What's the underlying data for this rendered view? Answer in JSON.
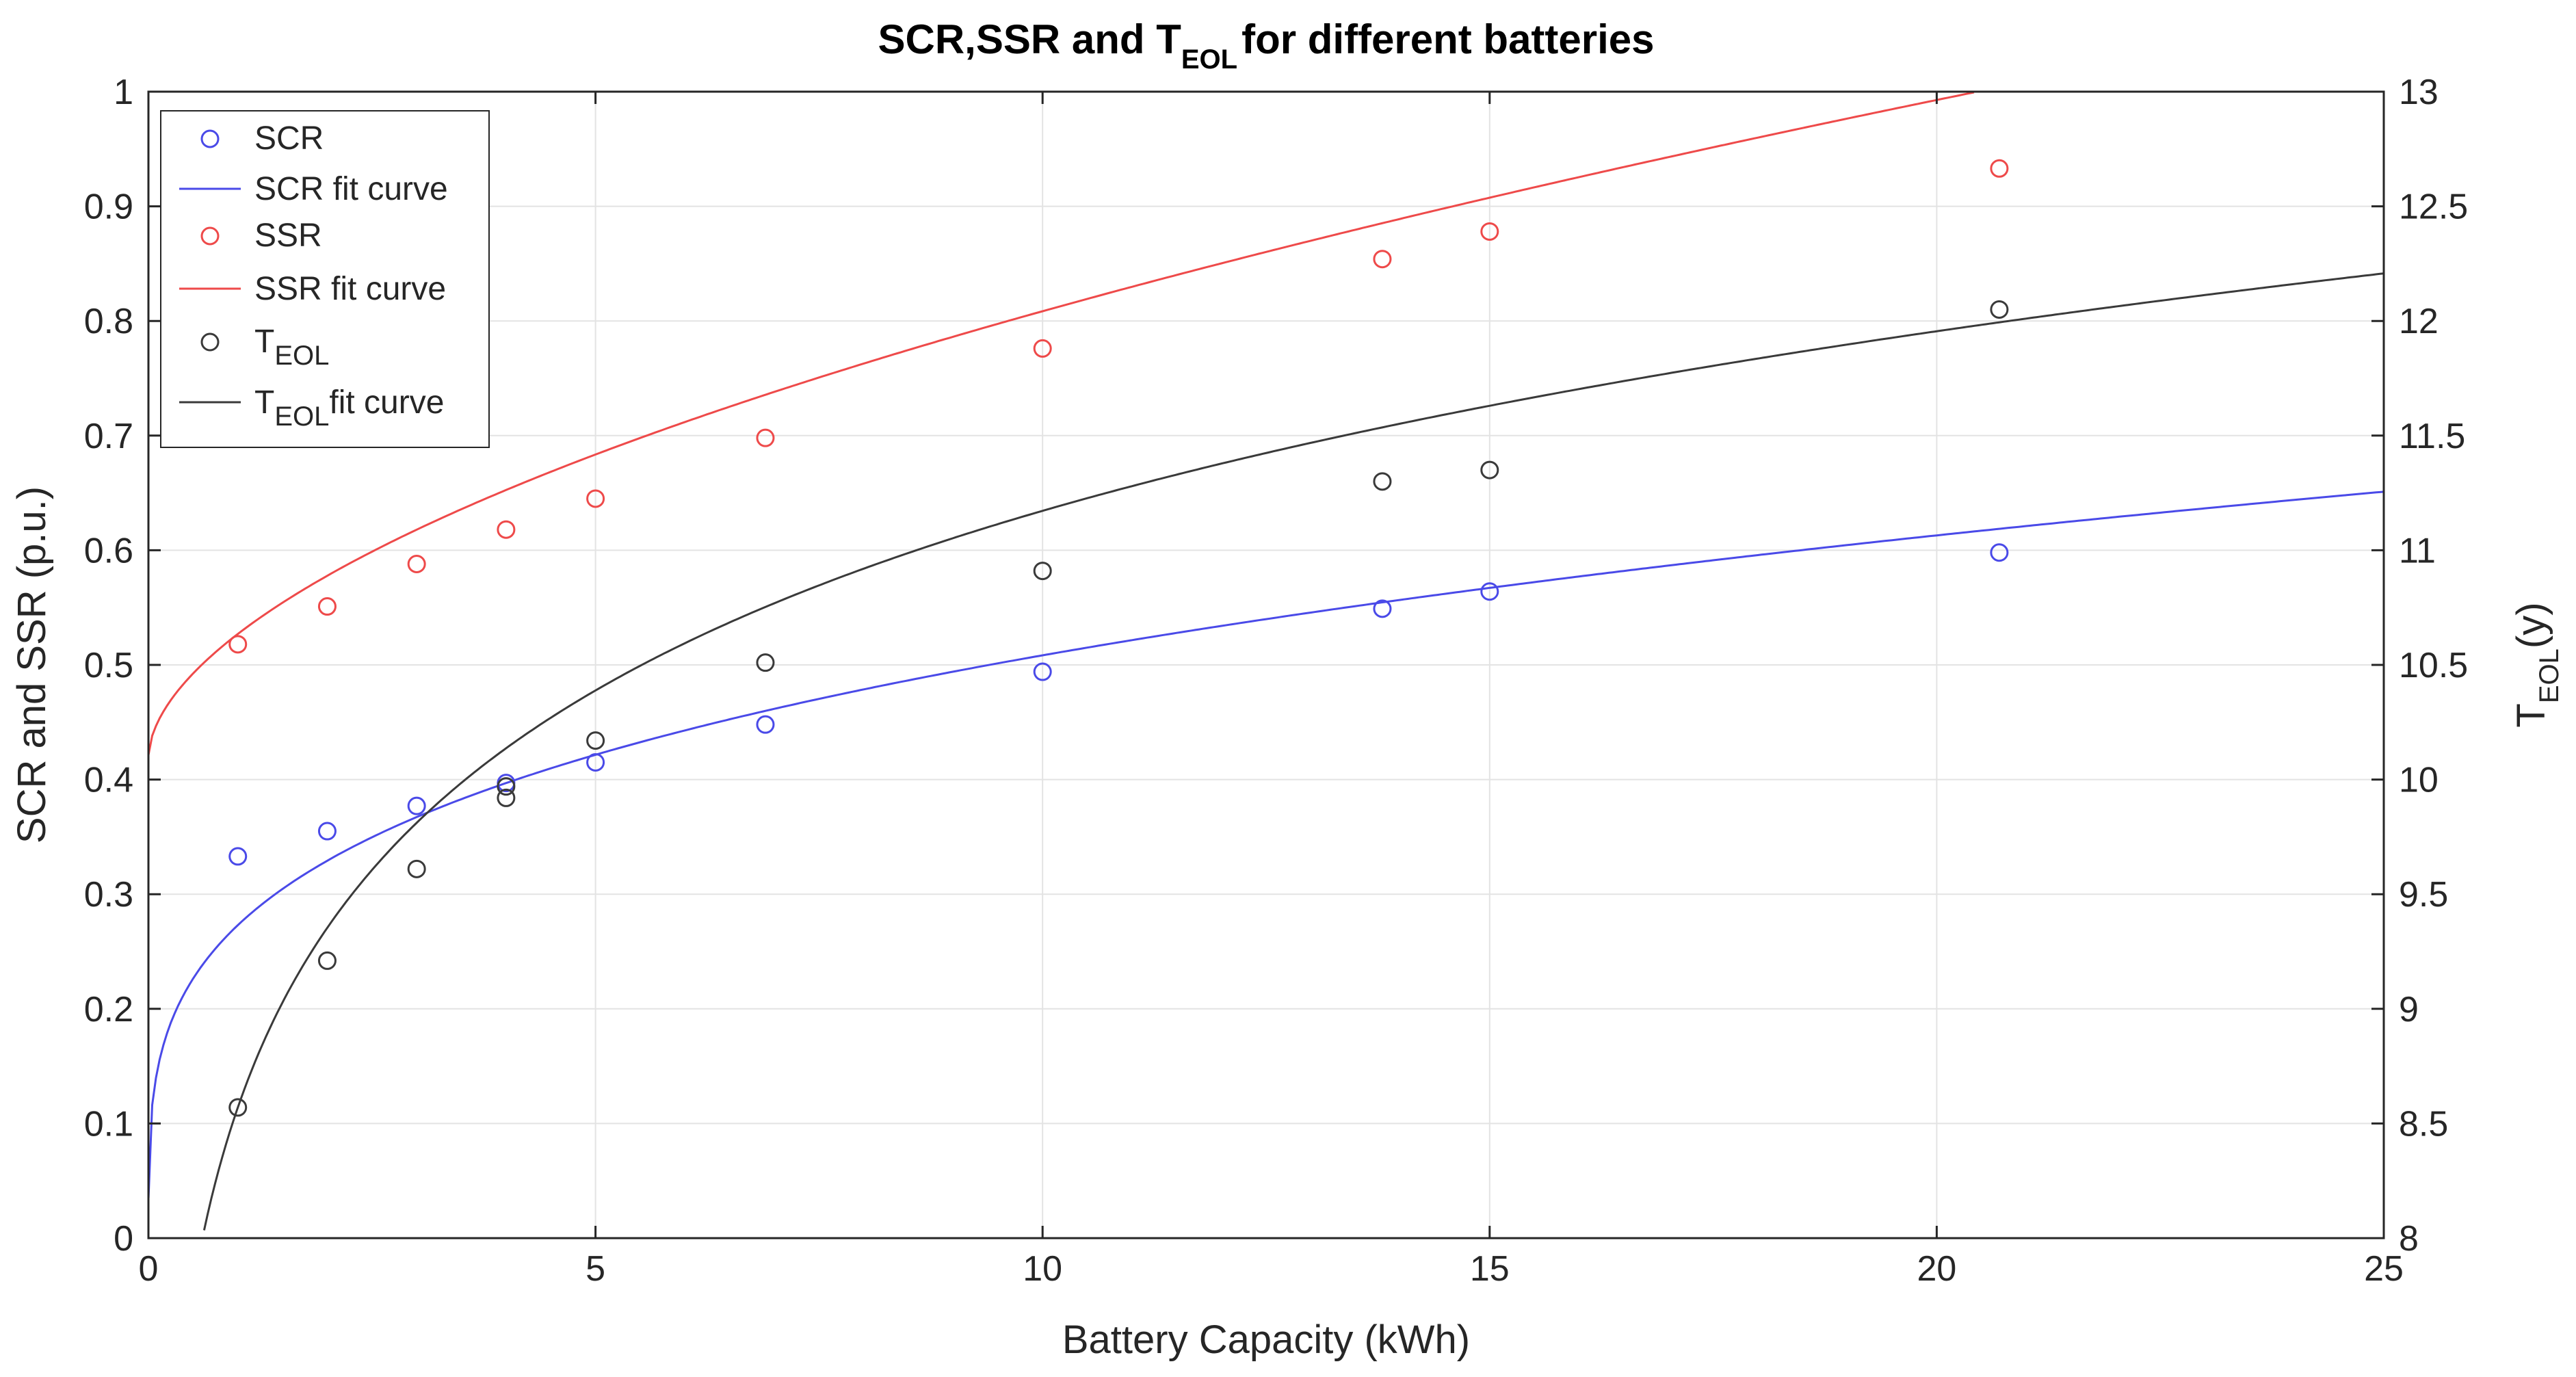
{
  "chart_data": {
    "type": "scatter",
    "title": {
      "main": "SCR,SSR and T",
      "sub": "EOL",
      "tail": "for different batteries"
    },
    "xlabel": "Battery Capacity (kWh)",
    "ylabel_left": "SCR and SSR (p.u.)",
    "ylabel_right": {
      "main": "T",
      "sub": "EOL",
      "tail": "(y)"
    },
    "xlim": [
      0,
      25
    ],
    "ylim_left": [
      0,
      1
    ],
    "ylim_right": [
      8,
      13
    ],
    "x_ticks": [
      "0",
      "5",
      "10",
      "15",
      "20",
      "25"
    ],
    "y_left_ticks": [
      "0",
      "0.1",
      "0.2",
      "0.3",
      "0.4",
      "0.5",
      "0.6",
      "0.7",
      "0.8",
      "0.9",
      "1"
    ],
    "y_right_ticks": [
      "8",
      "8.5",
      "9",
      "9.5",
      "10",
      "10.5",
      "11",
      "11.5",
      "12",
      "12.5",
      "13"
    ],
    "grid": true,
    "legend_position": "top-left",
    "colors": {
      "scr": "#4a4ae8",
      "ssr": "#ee4a4a",
      "teol": "#3a3a3a"
    },
    "series": [
      {
        "key": "scr",
        "name": "SCR",
        "fit_name": "SCR fit curve",
        "axis": "left",
        "x": [
          1,
          2,
          3,
          4,
          5,
          6.9,
          10,
          13.8,
          15,
          20.7
        ],
        "values": [
          0.333,
          0.355,
          0.377,
          0.397,
          0.415,
          0.448,
          0.494,
          0.549,
          0.564,
          0.598
        ],
        "fit": {
          "form": "a*x^b",
          "a": 0.273,
          "b": 0.27
        }
      },
      {
        "key": "ssr",
        "name": "SSR",
        "fit_name": "SSR fit curve",
        "axis": "left",
        "x": [
          1,
          2,
          3,
          4,
          5,
          6.9,
          10,
          13.8,
          15,
          20.7
        ],
        "values": [
          0.518,
          0.551,
          0.588,
          0.618,
          0.645,
          0.698,
          0.776,
          0.854,
          0.878,
          0.933
        ],
        "fit": {
          "form": "c + a*x^b",
          "a": 0.107,
          "b": 0.56,
          "c": 0.42
        }
      },
      {
        "key": "teol",
        "name": "T",
        "name_sub": "EOL",
        "fit_name": "fit curve",
        "axis": "right",
        "x": [
          1,
          2,
          3,
          4,
          4,
          5,
          6.9,
          10,
          13.8,
          15,
          20.7
        ],
        "values": [
          8.57,
          9.21,
          9.61,
          9.92,
          9.97,
          10.17,
          10.51,
          10.91,
          11.3,
          11.35,
          12.05
        ],
        "fit": {
          "form": "p + q*ln(x)",
          "p": 8.57,
          "q": 1.13,
          "x_start": 0.5
        }
      }
    ]
  }
}
